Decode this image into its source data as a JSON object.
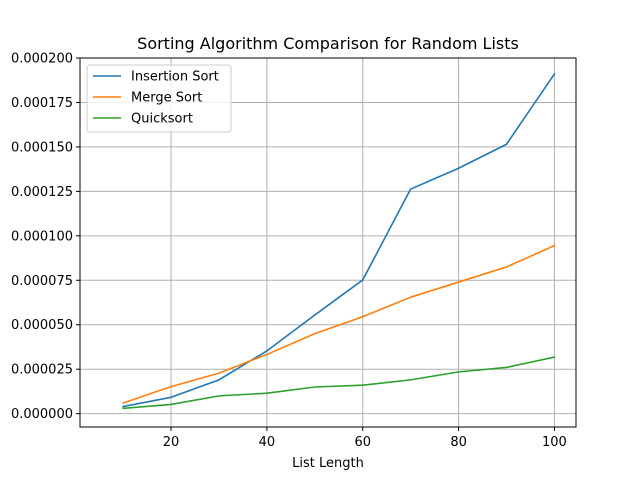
{
  "chart_data": {
    "type": "line",
    "title": "Sorting Algorithm Comparison for Random Lists",
    "xlabel": "List Length",
    "ylabel": "",
    "x": [
      10,
      20,
      30,
      40,
      50,
      60,
      70,
      80,
      90,
      100
    ],
    "xlim": [
      1,
      104.5
    ],
    "ylim": [
      -7.5e-06,
      0.0002
    ],
    "xticks": [
      20,
      40,
      60,
      80,
      100
    ],
    "xtick_labels": [
      "20",
      "40",
      "60",
      "80",
      "100"
    ],
    "yticks": [
      0,
      2.5e-05,
      5e-05,
      7.5e-05,
      0.0001,
      0.000125,
      0.00015,
      0.000175,
      0.0002
    ],
    "ytick_labels": [
      "0.000000",
      "0.000025",
      "0.000050",
      "0.000075",
      "0.000100",
      "0.000125",
      "0.000150",
      "0.000175",
      "0.000200"
    ],
    "grid": true,
    "legend_position": "top-left",
    "series": [
      {
        "name": "Insertion Sort",
        "color": "#1f77b4",
        "values": [
          4e-06,
          9.2e-06,
          1.9e-05,
          3.53e-05,
          5.55e-05,
          7.52e-05,
          0.0001263,
          0.000138,
          0.0001515,
          0.000191
        ]
      },
      {
        "name": "Merge Sort",
        "color": "#ff7f0e",
        "values": [
          6e-06,
          1.52e-05,
          2.28e-05,
          3.33e-05,
          4.5e-05,
          5.45e-05,
          6.55e-05,
          7.4e-05,
          8.25e-05,
          9.45e-05
        ]
      },
      {
        "name": "Quicksort",
        "color": "#2ca02c",
        "values": [
          3e-06,
          5.2e-06,
          1e-05,
          1.15e-05,
          1.5e-05,
          1.6e-05,
          1.9e-05,
          2.35e-05,
          2.6e-05,
          3.18e-05
        ]
      }
    ]
  }
}
